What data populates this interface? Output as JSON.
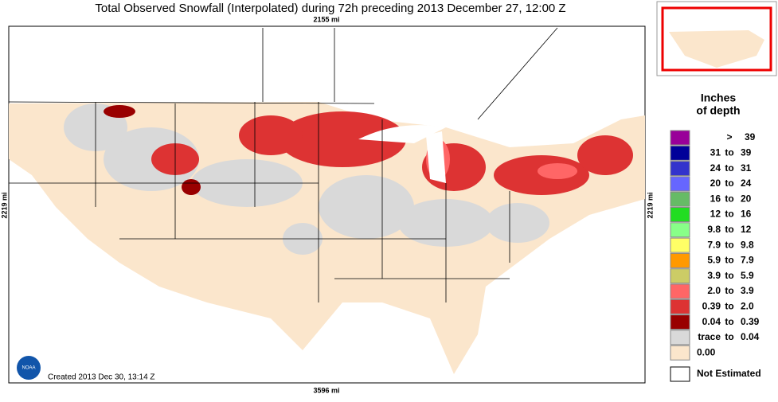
{
  "header": {
    "title": "Total Observed Snowfall (Interpolated) during 72h preceding 2013 December 27, 12:00 Z"
  },
  "map": {
    "top_distance": "2155 mi",
    "left_distance": "2219 mi",
    "right_distance": "2219 mi",
    "bottom_distance": "3596 mi",
    "created": "Created 2013 Dec 30, 13:14 Z",
    "logo": "NOAA"
  },
  "legend": {
    "title_line1": "Inches",
    "title_line2": "of depth",
    "items": [
      {
        "color": "#990099",
        "low": ">",
        "high": "39"
      },
      {
        "color": "#000099",
        "low": "31",
        "sep": "to",
        "high": "39"
      },
      {
        "color": "#3333cc",
        "low": "24",
        "sep": "to",
        "high": "31"
      },
      {
        "color": "#6666ff",
        "low": "20",
        "sep": "to",
        "high": "24"
      },
      {
        "color": "#66bb66",
        "low": "16",
        "sep": "to",
        "high": "20"
      },
      {
        "color": "#22dd22",
        "low": "12",
        "sep": "to",
        "high": "16"
      },
      {
        "color": "#88ff88",
        "low": "9.8",
        "sep": "to",
        "high": "12"
      },
      {
        "color": "#ffff66",
        "low": "7.9",
        "sep": "to",
        "high": "9.8"
      },
      {
        "color": "#ff9900",
        "low": "5.9",
        "sep": "to",
        "high": "7.9"
      },
      {
        "color": "#cccc66",
        "low": "3.9",
        "sep": "to",
        "high": "5.9"
      },
      {
        "color": "#ff6666",
        "low": "2.0",
        "sep": "to",
        "high": "3.9"
      },
      {
        "color": "#dd3333",
        "low": "0.39",
        "sep": "to",
        "high": "2.0"
      },
      {
        "color": "#990000",
        "low": "0.04",
        "sep": "to",
        "high": "0.39"
      },
      {
        "color": "#d9d9d9",
        "low": "trace",
        "sep": "to",
        "high": "0.04"
      },
      {
        "color": "#fbe6cc",
        "low": "0.00"
      }
    ],
    "not_estimated": "Not Estimated"
  }
}
